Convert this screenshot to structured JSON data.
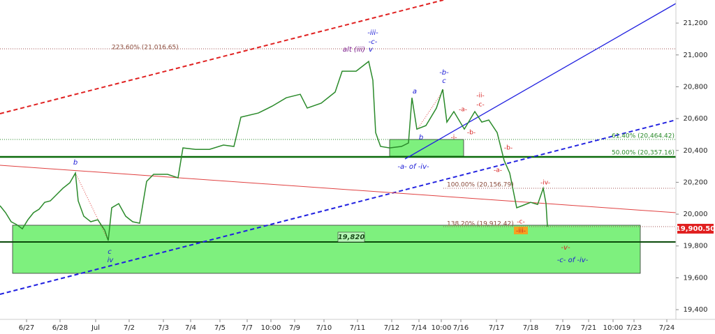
{
  "chart_data": {
    "type": "line",
    "color": "#2a8a2a",
    "x": [
      0,
      8,
      16,
      24,
      32,
      40,
      48,
      56,
      64,
      72,
      80,
      90,
      100,
      108,
      112,
      120,
      130,
      140,
      150,
      155,
      160,
      170,
      180,
      190,
      200,
      210,
      220,
      240,
      255,
      262,
      280,
      300,
      320,
      335,
      345,
      370,
      390,
      410,
      430,
      440,
      460,
      480,
      490,
      510,
      528,
      534,
      538,
      545,
      558,
      575,
      585,
      590,
      597,
      610,
      625,
      634,
      640,
      650,
      665,
      680,
      690,
      700,
      712,
      722,
      730,
      740,
      748,
      760,
      770,
      778,
      782,
      784
    ],
    "values": [
      20053,
      20009,
      19952,
      19934,
      19908,
      19965,
      20009,
      20031,
      20074,
      20083,
      20118,
      20162,
      20197,
      20258,
      20083,
      19987,
      19952,
      19965,
      19899,
      19834,
      20040,
      20066,
      19987,
      19952,
      19943,
      20206,
      20250,
      20250,
      20228,
      20416,
      20407,
      20407,
      20434,
      20425,
      20609,
      20635,
      20679,
      20731,
      20753,
      20666,
      20697,
      20767,
      20898,
      20898,
      20959,
      20841,
      20512,
      20425,
      20416,
      20425,
      20447,
      20731,
      20534,
      20556,
      20666,
      20784,
      20578,
      20644,
      20534,
      20644,
      20578,
      20591,
      20512,
      20337,
      20258,
      20040,
      20053,
      20074,
      20061,
      20162,
      20066,
      19921
    ],
    "xlim": [
      0,
      968
    ],
    "ylim": [
      19339,
      21345
    ],
    "xticks": [
      {
        "value": 38,
        "label": "6/27"
      },
      {
        "value": 86,
        "label": "6/28"
      },
      {
        "value": 137,
        "label": "Jul"
      },
      {
        "value": 185,
        "label": "7/2"
      },
      {
        "value": 234,
        "label": "7/3"
      },
      {
        "value": 273,
        "label": "7/4"
      },
      {
        "value": 315,
        "label": "7/5"
      },
      {
        "value": 354,
        "label": "7/7"
      },
      {
        "value": 388,
        "label": "10:00"
      },
      {
        "value": 422,
        "label": "7/9"
      },
      {
        "value": 464,
        "label": "7/10"
      },
      {
        "value": 512,
        "label": "7/11"
      },
      {
        "value": 561,
        "label": "7/12"
      },
      {
        "value": 600,
        "label": "7/14"
      },
      {
        "value": 632,
        "label": "10:00"
      },
      {
        "value": 660,
        "label": "7/16"
      },
      {
        "value": 711,
        "label": "7/17"
      },
      {
        "value": 760,
        "label": "7/18"
      },
      {
        "value": 806,
        "label": "7/19"
      },
      {
        "value": 843,
        "label": "7/21"
      },
      {
        "value": 878,
        "label": "10:00"
      },
      {
        "value": 908,
        "label": "7/23"
      },
      {
        "value": 955,
        "label": "7/24"
      }
    ],
    "yticks": [
      {
        "value": 19400,
        "label": "19,400"
      },
      {
        "value": 19600,
        "label": "19,600"
      },
      {
        "value": 19800,
        "label": "19,800"
      },
      {
        "value": 20000,
        "label": "20,000"
      },
      {
        "value": 20200,
        "label": "20,200"
      },
      {
        "value": 20400,
        "label": "20,400"
      },
      {
        "value": 20600,
        "label": "20,600"
      },
      {
        "value": 20800,
        "label": "20,800"
      },
      {
        "value": 21000,
        "label": "21,000"
      },
      {
        "value": 21200,
        "label": "21,200"
      }
    ],
    "annotations": [
      "-iii-",
      "-c-",
      "v",
      "alt (iii)",
      "223.60% (21,016.65)",
      "a",
      "-b-",
      "c",
      "b",
      "-i-",
      "-ii-",
      "-c-",
      "-a-",
      "-b-",
      "61.40% (20,464.42)",
      "50.00% (20,357.16)",
      "-b-",
      "-a-",
      "-a- of -iv-",
      "100.00% (20,156.79)",
      "-iv-",
      "b",
      "138.20% (19,912.42)",
      "-c-",
      "-iii-",
      "19,820",
      "c",
      "iv",
      "-v-",
      "-c- of -iv-",
      "19,900.50"
    ]
  }
}
